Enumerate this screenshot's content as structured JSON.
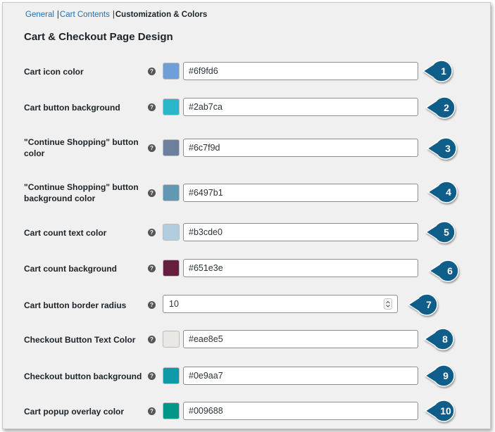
{
  "tabs": [
    {
      "label": "General"
    },
    {
      "label": "Cart Contents"
    },
    {
      "label": "Customization & Colors"
    }
  ],
  "section_title": "Cart & Checkout Page Design",
  "help_glyph": "?",
  "callout_color": "#0f5e8a",
  "fields": [
    {
      "label": "Cart icon color",
      "value": "#6f9fd6",
      "swatch": "#6f9fd6",
      "callout": "1"
    },
    {
      "label": "Cart button background",
      "value": "#2ab7ca",
      "swatch": "#2ab7ca",
      "callout": "2"
    },
    {
      "label": "\"Continue Shopping\" button color",
      "value": "#6c7f9d",
      "swatch": "#6c7f9d",
      "callout": "3"
    },
    {
      "label": "\"Continue Shopping\" button background color",
      "value": "#6497b1",
      "swatch": "#6497b1",
      "callout": "4"
    },
    {
      "label": "Cart count text color",
      "value": "#b3cde0",
      "swatch": "#b3cde0",
      "callout": "5"
    },
    {
      "label": "Cart count background",
      "value": "#651e3e",
      "swatch": "#651e3e",
      "callout": "6"
    },
    {
      "label": "Cart button border radius",
      "value": "10",
      "callout": "7"
    },
    {
      "label": "Checkout Button Text Color",
      "value": "#eae8e5",
      "swatch": "#eae8e5",
      "callout": "8"
    },
    {
      "label": "Checkout button background",
      "value": "#0e9aa7",
      "swatch": "#0e9aa7",
      "callout": "9"
    },
    {
      "label": "Cart popup overlay color",
      "value": "#009688",
      "swatch": "#009688",
      "callout": "10"
    }
  ]
}
